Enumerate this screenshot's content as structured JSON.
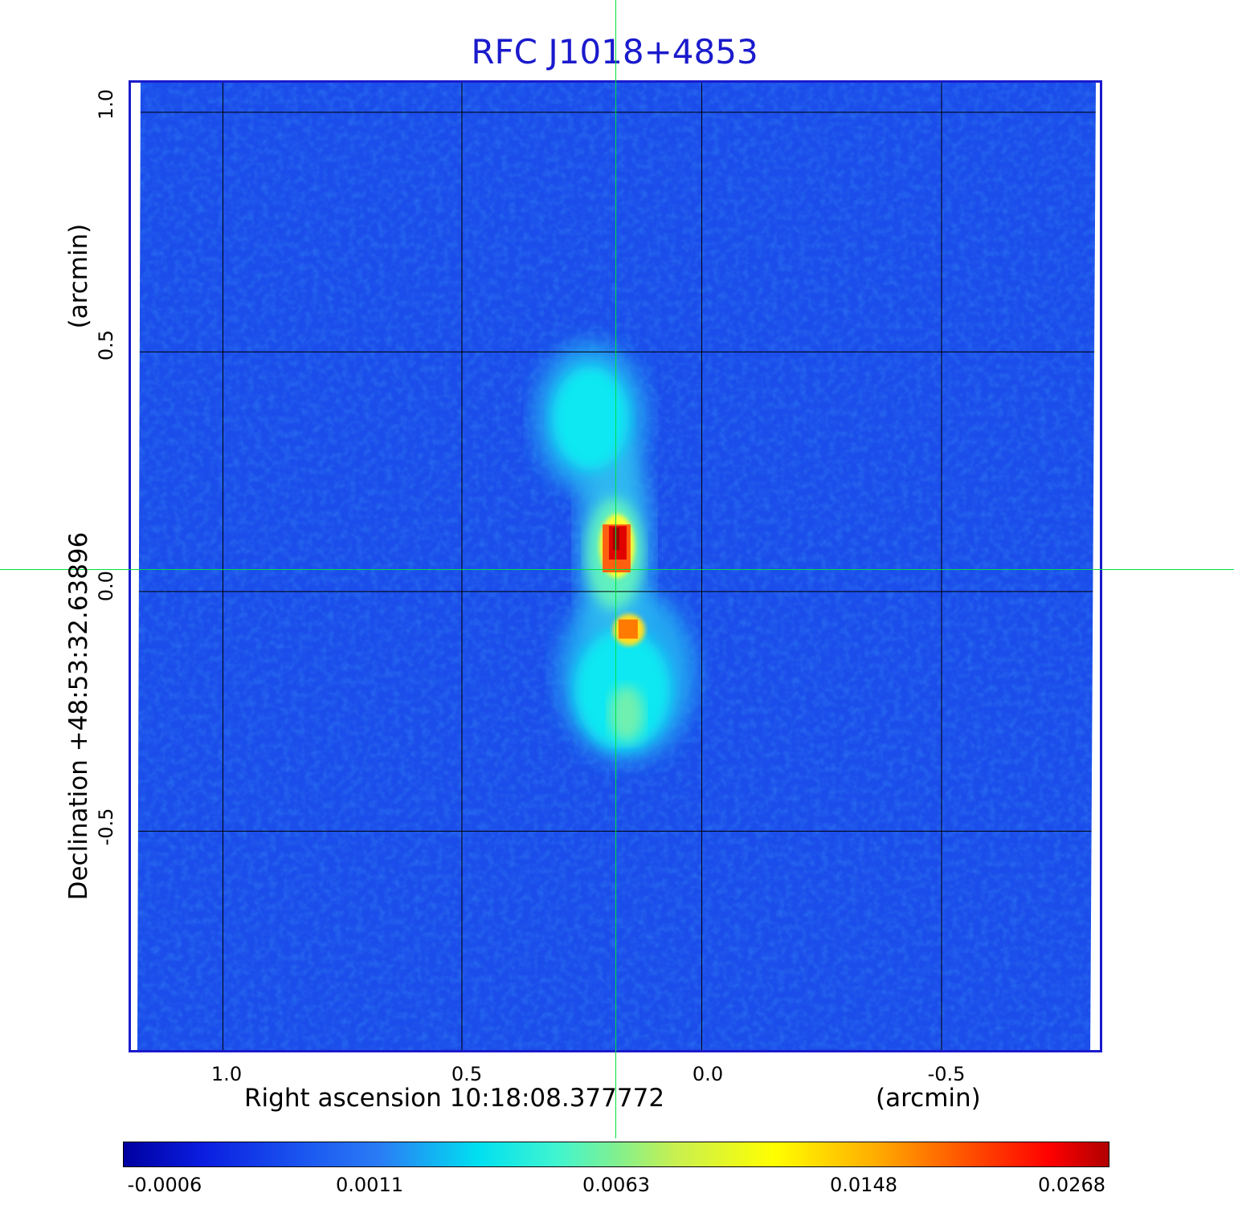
{
  "title": "RFC J1018+4853",
  "x_axis": {
    "label": "Right ascension  10:18:08.377772",
    "unit": "(arcmin)",
    "ticks": [
      "1.0",
      "0.5",
      "0.0",
      "-0.5"
    ]
  },
  "y_axis": {
    "label": "Declination  +48:53:32.63896",
    "unit": "(arcmin)",
    "ticks": [
      "1.0",
      "0.5",
      "0.0",
      "-0.5"
    ]
  },
  "colorbar": {
    "ticks": [
      "-0.0006",
      "0.0011",
      "0.0063",
      "0.0148",
      "0.0268"
    ]
  },
  "colors": {
    "title": "#1a1acc",
    "frame": "#1a1acc",
    "crosshair": "#00e040",
    "grid": "#000000"
  }
}
